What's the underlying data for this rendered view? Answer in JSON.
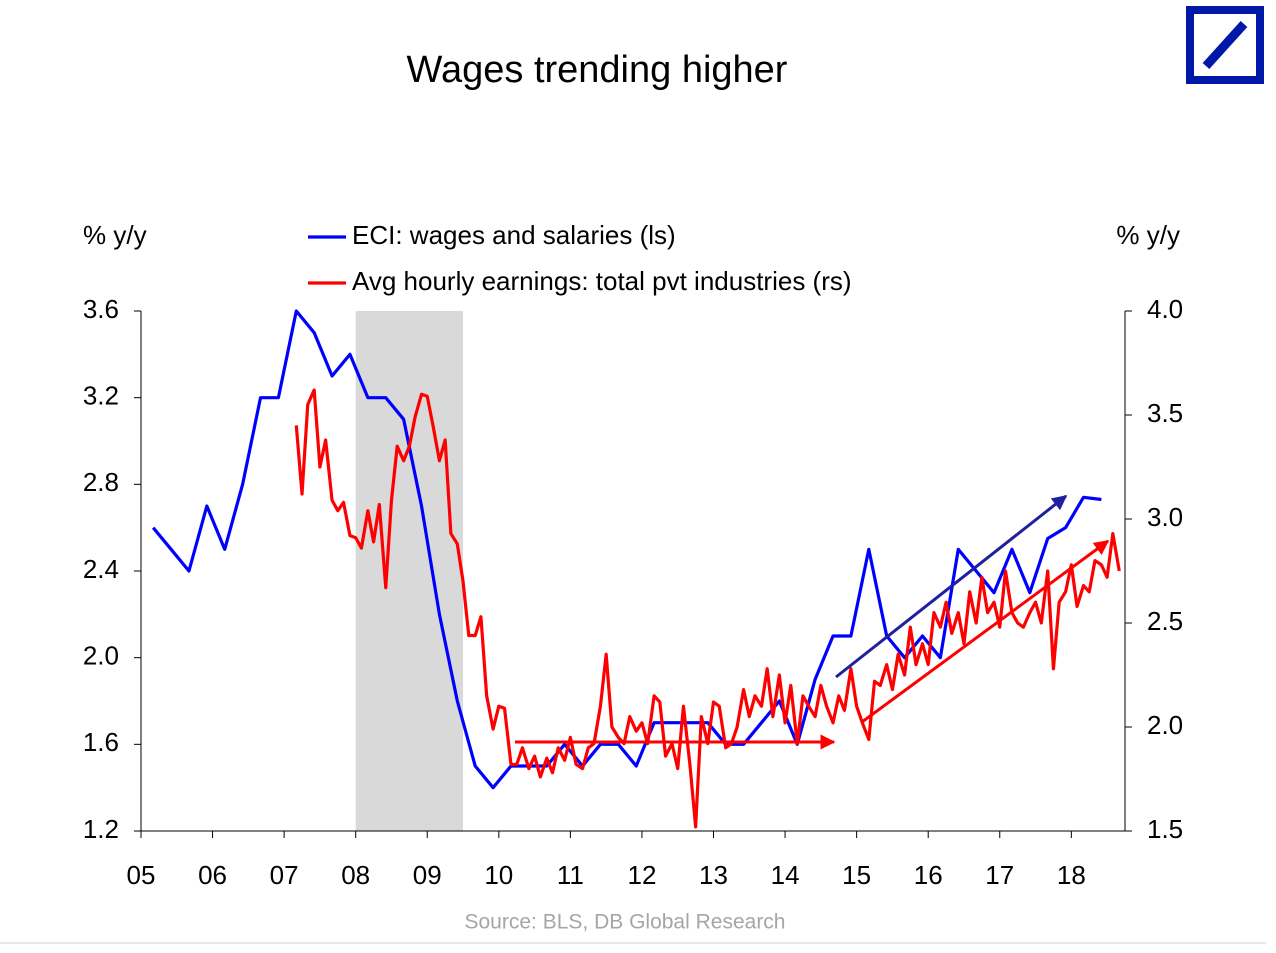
{
  "chart_data": {
    "type": "line",
    "title": "Wages trending higher",
    "ylabel": "% y/y",
    "y2label": "% y/y",
    "source": "Source: BLS, DB Global Research",
    "xlim": [
      2005,
      2018.75
    ],
    "xticks": [
      {
        "value": 2005,
        "label": "05"
      },
      {
        "value": 2006,
        "label": "06"
      },
      {
        "value": 2007,
        "label": "07"
      },
      {
        "value": 2008,
        "label": "08"
      },
      {
        "value": 2009,
        "label": "09"
      },
      {
        "value": 2010,
        "label": "10"
      },
      {
        "value": 2011,
        "label": "11"
      },
      {
        "value": 2012,
        "label": "12"
      },
      {
        "value": 2013,
        "label": "13"
      },
      {
        "value": 2014,
        "label": "14"
      },
      {
        "value": 2015,
        "label": "15"
      },
      {
        "value": 2016,
        "label": "16"
      },
      {
        "value": 2017,
        "label": "17"
      },
      {
        "value": 2018,
        "label": "18"
      }
    ],
    "ylim": [
      1.2,
      3.6
    ],
    "yticks": [
      1.2,
      1.6,
      {
        "value": 2.0,
        "label": "2.0"
      },
      2.4,
      2.8,
      3.2,
      3.6
    ],
    "y2lim": [
      1.5,
      4.0
    ],
    "y2ticks": [
      1.5,
      {
        "value": 2.0,
        "label": "2.0"
      },
      2.5,
      {
        "value": 3.0,
        "label": "3.0"
      },
      3.5,
      {
        "value": 4.0,
        "label": "4.0"
      }
    ],
    "shaded_period": [
      2008,
      2009.5
    ],
    "shade_color": "#d9d9d9",
    "series": [
      {
        "name": "ECI: wages and salaries (ls)",
        "color": "#0000ff",
        "axis": "y",
        "x": [
          2005.17,
          2005.42,
          2005.67,
          2005.92,
          2006.17,
          2006.42,
          2006.67,
          2006.92,
          2007.17,
          2007.42,
          2007.67,
          2007.92,
          2008.17,
          2008.42,
          2008.67,
          2008.92,
          2009.17,
          2009.42,
          2009.67,
          2009.92,
          2010.17,
          2010.42,
          2010.67,
          2010.92,
          2011.17,
          2011.42,
          2011.67,
          2011.92,
          2012.17,
          2012.42,
          2012.67,
          2012.92,
          2013.17,
          2013.42,
          2013.67,
          2013.92,
          2014.17,
          2014.42,
          2014.67,
          2014.92,
          2015.17,
          2015.42,
          2015.67,
          2015.92,
          2016.17,
          2016.42,
          2016.67,
          2016.92,
          2017.17,
          2017.42,
          2017.67,
          2017.92,
          2018.17,
          2018.42
        ],
        "values": [
          2.6,
          2.5,
          2.4,
          2.7,
          2.5,
          2.8,
          3.2,
          3.2,
          3.6,
          3.5,
          3.3,
          3.4,
          3.2,
          3.2,
          3.1,
          2.7,
          2.2,
          1.8,
          1.5,
          1.4,
          1.5,
          1.5,
          1.5,
          1.6,
          1.5,
          1.6,
          1.6,
          1.5,
          1.7,
          1.7,
          1.7,
          1.7,
          1.6,
          1.6,
          1.7,
          1.8,
          1.6,
          1.9,
          2.1,
          2.1,
          2.5,
          2.1,
          2.0,
          2.1,
          2.0,
          2.5,
          2.4,
          2.3,
          2.5,
          2.3,
          2.55,
          2.6,
          2.74,
          2.73
        ]
      },
      {
        "name": "Avg hourly earnings: total pvt industries (rs)",
        "color": "#ff0000",
        "axis": "y2",
        "x": [
          2007.17,
          2007.25,
          2007.33,
          2007.42,
          2007.5,
          2007.58,
          2007.67,
          2007.75,
          2007.83,
          2007.92,
          2008.0,
          2008.08,
          2008.17,
          2008.25,
          2008.33,
          2008.42,
          2008.5,
          2008.58,
          2008.67,
          2008.75,
          2008.83,
          2008.92,
          2009.0,
          2009.08,
          2009.17,
          2009.25,
          2009.33,
          2009.42,
          2009.5,
          2009.58,
          2009.67,
          2009.75,
          2009.83,
          2009.92,
          2010.0,
          2010.08,
          2010.17,
          2010.25,
          2010.33,
          2010.42,
          2010.5,
          2010.58,
          2010.67,
          2010.75,
          2010.83,
          2010.92,
          2011.0,
          2011.08,
          2011.17,
          2011.25,
          2011.33,
          2011.42,
          2011.5,
          2011.58,
          2011.67,
          2011.75,
          2011.83,
          2011.92,
          2012.0,
          2012.08,
          2012.17,
          2012.25,
          2012.33,
          2012.42,
          2012.5,
          2012.58,
          2012.67,
          2012.75,
          2012.83,
          2012.92,
          2013.0,
          2013.08,
          2013.17,
          2013.25,
          2013.33,
          2013.42,
          2013.5,
          2013.58,
          2013.67,
          2013.75,
          2013.83,
          2013.92,
          2014.0,
          2014.08,
          2014.17,
          2014.25,
          2014.33,
          2014.42,
          2014.5,
          2014.58,
          2014.67,
          2014.75,
          2014.83,
          2014.92,
          2015.0,
          2015.08,
          2015.17,
          2015.25,
          2015.33,
          2015.42,
          2015.5,
          2015.58,
          2015.67,
          2015.75,
          2015.83,
          2015.92,
          2016.0,
          2016.08,
          2016.17,
          2016.25,
          2016.33,
          2016.42,
          2016.5,
          2016.58,
          2016.67,
          2016.75,
          2016.83,
          2016.92,
          2017.0,
          2017.08,
          2017.17,
          2017.25,
          2017.33,
          2017.42,
          2017.5,
          2017.58,
          2017.67,
          2017.75,
          2017.83,
          2017.92,
          2018.0,
          2018.08,
          2018.17,
          2018.25,
          2018.33,
          2018.42,
          2018.5,
          2018.58,
          2018.67
        ],
        "values": [
          3.45,
          3.12,
          3.55,
          3.62,
          3.25,
          3.38,
          3.09,
          3.04,
          3.08,
          2.92,
          2.91,
          2.86,
          3.04,
          2.89,
          3.07,
          2.67,
          3.09,
          3.35,
          3.28,
          3.35,
          3.49,
          3.6,
          3.59,
          3.45,
          3.28,
          3.38,
          2.93,
          2.88,
          2.7,
          2.44,
          2.44,
          2.53,
          2.15,
          1.99,
          2.1,
          2.09,
          1.82,
          1.82,
          1.9,
          1.8,
          1.86,
          1.76,
          1.85,
          1.78,
          1.9,
          1.84,
          1.95,
          1.82,
          1.8,
          1.9,
          1.92,
          2.1,
          2.35,
          2.0,
          1.95,
          1.92,
          2.05,
          1.98,
          2.02,
          1.92,
          2.15,
          2.12,
          1.86,
          1.92,
          1.8,
          2.1,
          1.82,
          1.52,
          2.05,
          1.92,
          2.12,
          2.1,
          1.9,
          1.92,
          2.0,
          2.18,
          2.05,
          2.15,
          2.1,
          2.28,
          2.05,
          2.25,
          2.02,
          2.2,
          1.92,
          2.15,
          2.1,
          2.05,
          2.2,
          2.1,
          2.02,
          2.15,
          2.08,
          2.28,
          2.1,
          2.02,
          1.94,
          2.22,
          2.2,
          2.3,
          2.18,
          2.35,
          2.25,
          2.48,
          2.3,
          2.4,
          2.3,
          2.55,
          2.48,
          2.6,
          2.45,
          2.55,
          2.4,
          2.65,
          2.5,
          2.72,
          2.55,
          2.6,
          2.48,
          2.75,
          2.55,
          2.5,
          2.48,
          2.55,
          2.6,
          2.5,
          2.75,
          2.28,
          2.6,
          2.65,
          2.78,
          2.58,
          2.68,
          2.65,
          2.8,
          2.78,
          2.72,
          2.93,
          2.75
        ]
      }
    ]
  }
}
